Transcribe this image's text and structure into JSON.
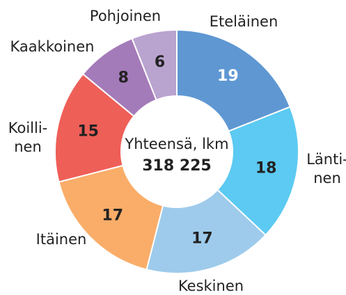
{
  "chart_data": {
    "type": "donut",
    "categories": [
      [
        "Eteläinen"
      ],
      [
        "Länti-",
        "nen"
      ],
      [
        "Keskinen"
      ],
      [
        "Itäinen"
      ],
      [
        "Koilli-",
        "nen"
      ],
      [
        "Kaakkoinen"
      ],
      [
        "Pohjoinen"
      ]
    ],
    "values": [
      19,
      18,
      17,
      17,
      15,
      8,
      6
    ],
    "colors": [
      "#5f97d3",
      "#5ccaf2",
      "#9ecbeb",
      "#f9ad69",
      "#ee5f58",
      "#a47bb9",
      "#b9a3cf"
    ],
    "value_label_colors": [
      "#ffffff",
      "#222222",
      "#222222",
      "#222222",
      "#222222",
      "#222222",
      "#222222"
    ],
    "center_text": [
      "Yhteensä, lkm",
      "318 225"
    ]
  }
}
